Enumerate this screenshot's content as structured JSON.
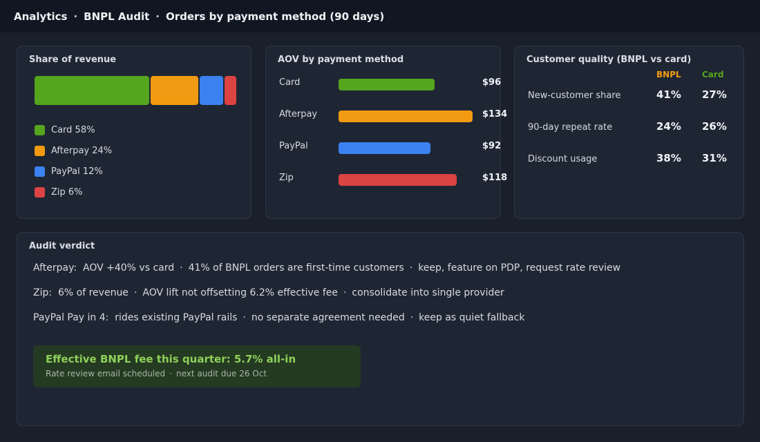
{
  "header": {
    "crumbs": [
      "Analytics",
      "BNPL Audit",
      "Orders by payment method (90 days)"
    ],
    "separator": "·"
  },
  "share": {
    "title": "Share of revenue",
    "items": [
      {
        "name": "Card",
        "percent": 58,
        "label": "Card 58%",
        "color": "#55a51e"
      },
      {
        "name": "Afterpay",
        "percent": 24,
        "label": "Afterpay 24%",
        "color": "#f29b12"
      },
      {
        "name": "PayPal",
        "percent": 12,
        "label": "PayPal 12%",
        "color": "#3b82f0"
      },
      {
        "name": "Zip",
        "percent": 6,
        "label": "Zip 6%",
        "color": "#dc4343"
      }
    ]
  },
  "aov": {
    "title": "AOV by payment method",
    "max": 134,
    "items": [
      {
        "name": "Card",
        "value": 96,
        "label": "$96",
        "color": "#55a51e"
      },
      {
        "name": "Afterpay",
        "value": 134,
        "label": "$134",
        "color": "#f29b12"
      },
      {
        "name": "PayPal",
        "value": 92,
        "label": "$92",
        "color": "#3b82f0"
      },
      {
        "name": "Zip",
        "value": 118,
        "label": "$118",
        "color": "#dc4343"
      }
    ]
  },
  "quality": {
    "title": "Customer quality (BNPL vs card)",
    "col1": "BNPL",
    "col2": "Card",
    "col1_color": "#f29b12",
    "col2_color": "#55a51e",
    "rows": [
      {
        "label": "New-customer share",
        "bnpl": "41%",
        "card": "27%"
      },
      {
        "label": "90-day repeat rate",
        "bnpl": "24%",
        "card": "26%"
      },
      {
        "label": "Discount usage",
        "bnpl": "38%",
        "card": "31%"
      }
    ]
  },
  "verdict": {
    "title": "Audit verdict",
    "lines": [
      {
        "lead": "Afterpay:",
        "parts": [
          "AOV +40% vs card",
          "41% of BNPL orders are first-time customers",
          "keep, feature on PDP, request rate review"
        ]
      },
      {
        "lead": "Zip:",
        "parts": [
          "6% of revenue",
          "AOV lift not offsetting 6.2% effective fee",
          "consolidate into single provider"
        ]
      },
      {
        "lead": "PayPal Pay in 4:",
        "parts": [
          "rides existing PayPal rails",
          "no separate agreement needed",
          "keep as quiet fallback"
        ]
      }
    ],
    "callout": {
      "title": "Effective BNPL fee this quarter: 5.7% all-in",
      "sub_a": "Rate review email scheduled",
      "sub_b": "next audit due 26 Oct"
    }
  }
}
